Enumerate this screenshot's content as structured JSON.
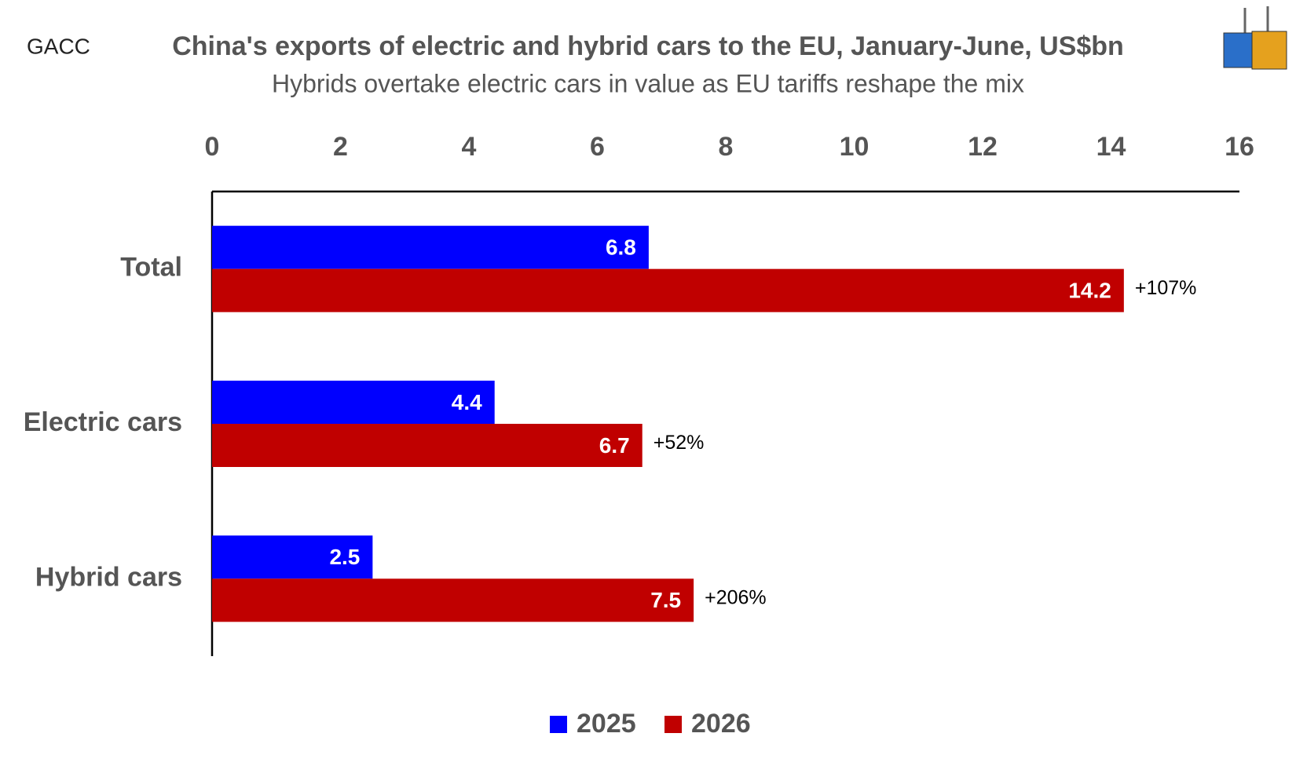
{
  "chart_data": {
    "type": "hbar",
    "title": "China's exports of electric and hybrid cars to the EU, January-June, US$bn",
    "subtitle": "Hybrids overtake electric cars in value as EU tariffs reshape the mix",
    "source": "GACC",
    "categories": [
      "Total",
      "Electric cars",
      "Hybrid cars"
    ],
    "series": [
      {
        "name": "2025",
        "color": "#0000ff",
        "values": [
          6.8,
          4.4,
          2.5
        ]
      },
      {
        "name": "2026",
        "color": "#c00000",
        "values": [
          14.2,
          6.7,
          7.5
        ]
      }
    ],
    "growth_labels": [
      "+107%",
      "+52%",
      "+206%"
    ],
    "xlim": [
      0,
      16
    ],
    "xticks": [
      0,
      2,
      4,
      6,
      8,
      10,
      12,
      14,
      16
    ],
    "legend": "bottom"
  }
}
